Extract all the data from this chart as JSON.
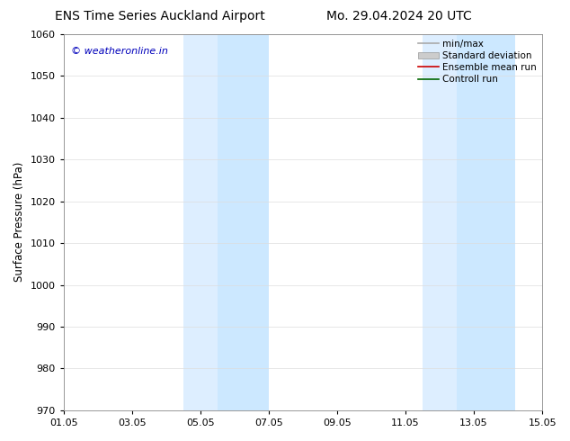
{
  "title_left": "ENS Time Series Auckland Airport",
  "title_right": "Mo. 29.04.2024 20 UTC",
  "ylabel": "Surface Pressure (hPa)",
  "ylim": [
    970,
    1060
  ],
  "yticks": [
    970,
    980,
    990,
    1000,
    1010,
    1020,
    1030,
    1040,
    1050,
    1060
  ],
  "xtick_labels": [
    "01.05",
    "03.05",
    "05.05",
    "07.05",
    "09.05",
    "11.05",
    "13.05",
    "15.05"
  ],
  "xtick_positions": [
    0,
    2,
    4,
    6,
    8,
    10,
    12,
    14
  ],
  "shade_regions": [
    {
      "start": 3.5,
      "end": 4.5,
      "color": "#ddeeff"
    },
    {
      "start": 4.5,
      "end": 6.0,
      "color": "#cce8ff"
    },
    {
      "start": 10.5,
      "end": 11.5,
      "color": "#ddeeff"
    },
    {
      "start": 11.5,
      "end": 13.2,
      "color": "#cce8ff"
    }
  ],
  "copyright_text": "© weatheronline.in",
  "copyright_color": "#0000bb",
  "copyright_fontsize": 8,
  "legend_entries": [
    {
      "label": "min/max",
      "color": "#aaaaaa",
      "lw": 1.2,
      "type": "line"
    },
    {
      "label": "Standard deviation",
      "color": "#cccccc",
      "lw": 8,
      "type": "bar"
    },
    {
      "label": "Ensemble mean run",
      "color": "#cc0000",
      "lw": 1.2,
      "type": "line"
    },
    {
      "label": "Controll run",
      "color": "#006600",
      "lw": 1.2,
      "type": "line"
    }
  ],
  "bg_color": "#ffffff",
  "grid_color": "#dddddd",
  "title_fontsize": 10,
  "axis_label_fontsize": 8.5,
  "tick_fontsize": 8
}
